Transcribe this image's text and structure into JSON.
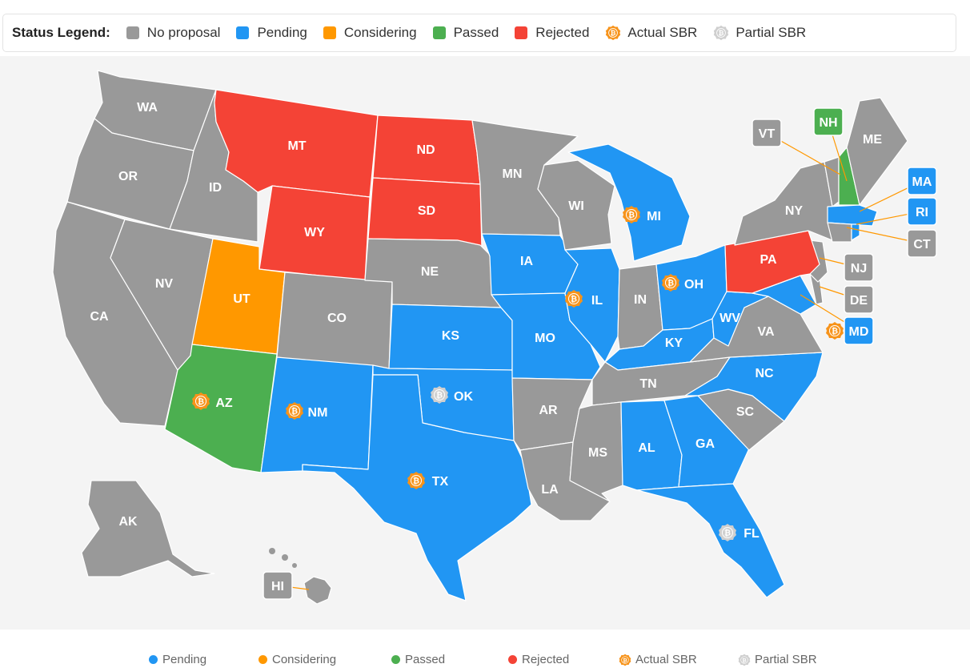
{
  "legend": {
    "title": "Status Legend:",
    "items": [
      {
        "label": "No proposal",
        "color": "#999999",
        "kind": "swatch"
      },
      {
        "label": "Pending",
        "color": "#2196f3",
        "kind": "swatch"
      },
      {
        "label": "Considering",
        "color": "#ff9800",
        "kind": "swatch"
      },
      {
        "label": "Passed",
        "color": "#4caf50",
        "kind": "swatch"
      },
      {
        "label": "Rejected",
        "color": "#f44336",
        "kind": "swatch"
      },
      {
        "label": "Actual SBR",
        "color": "#f7931a",
        "kind": "coin"
      },
      {
        "label": "Partial SBR",
        "color": "#cccccc",
        "kind": "coin"
      }
    ]
  },
  "status_colors": {
    "none": "#999999",
    "pending": "#2196f3",
    "considering": "#ff9800",
    "passed": "#4caf50",
    "rejected": "#f44336"
  },
  "states": [
    {
      "abbr": "WA",
      "status": "none",
      "sbr": null
    },
    {
      "abbr": "OR",
      "status": "none",
      "sbr": null
    },
    {
      "abbr": "CA",
      "status": "none",
      "sbr": null
    },
    {
      "abbr": "ID",
      "status": "none",
      "sbr": null
    },
    {
      "abbr": "NV",
      "status": "none",
      "sbr": null
    },
    {
      "abbr": "MT",
      "status": "rejected",
      "sbr": null
    },
    {
      "abbr": "WY",
      "status": "rejected",
      "sbr": null
    },
    {
      "abbr": "UT",
      "status": "considering",
      "sbr": null
    },
    {
      "abbr": "AZ",
      "status": "passed",
      "sbr": "actual"
    },
    {
      "abbr": "CO",
      "status": "none",
      "sbr": null
    },
    {
      "abbr": "NM",
      "status": "pending",
      "sbr": "actual"
    },
    {
      "abbr": "ND",
      "status": "rejected",
      "sbr": null
    },
    {
      "abbr": "SD",
      "status": "rejected",
      "sbr": null
    },
    {
      "abbr": "NE",
      "status": "none",
      "sbr": null
    },
    {
      "abbr": "KS",
      "status": "pending",
      "sbr": null
    },
    {
      "abbr": "OK",
      "status": "pending",
      "sbr": "partial"
    },
    {
      "abbr": "TX",
      "status": "pending",
      "sbr": "actual"
    },
    {
      "abbr": "MN",
      "status": "none",
      "sbr": null
    },
    {
      "abbr": "IA",
      "status": "pending",
      "sbr": null
    },
    {
      "abbr": "MO",
      "status": "pending",
      "sbr": null
    },
    {
      "abbr": "AR",
      "status": "none",
      "sbr": null
    },
    {
      "abbr": "LA",
      "status": "none",
      "sbr": null
    },
    {
      "abbr": "WI",
      "status": "none",
      "sbr": null
    },
    {
      "abbr": "IL",
      "status": "pending",
      "sbr": "actual"
    },
    {
      "abbr": "MI",
      "status": "pending",
      "sbr": "actual"
    },
    {
      "abbr": "IN",
      "status": "none",
      "sbr": null
    },
    {
      "abbr": "OH",
      "status": "pending",
      "sbr": "actual"
    },
    {
      "abbr": "KY",
      "status": "pending",
      "sbr": null
    },
    {
      "abbr": "TN",
      "status": "none",
      "sbr": null
    },
    {
      "abbr": "MS",
      "status": "none",
      "sbr": null
    },
    {
      "abbr": "AL",
      "status": "pending",
      "sbr": null
    },
    {
      "abbr": "GA",
      "status": "pending",
      "sbr": null
    },
    {
      "abbr": "FL",
      "status": "pending",
      "sbr": "partial"
    },
    {
      "abbr": "SC",
      "status": "none",
      "sbr": null
    },
    {
      "abbr": "NC",
      "status": "pending",
      "sbr": null
    },
    {
      "abbr": "VA",
      "status": "none",
      "sbr": null
    },
    {
      "abbr": "WV",
      "status": "pending",
      "sbr": null
    },
    {
      "abbr": "PA",
      "status": "rejected",
      "sbr": null
    },
    {
      "abbr": "NY",
      "status": "none",
      "sbr": null
    },
    {
      "abbr": "ME",
      "status": "none",
      "sbr": null
    },
    {
      "abbr": "AK",
      "status": "none",
      "sbr": null
    },
    {
      "abbr": "VT",
      "status": "none",
      "sbr": null
    },
    {
      "abbr": "NH",
      "status": "passed",
      "sbr": null
    },
    {
      "abbr": "MA",
      "status": "pending",
      "sbr": null
    },
    {
      "abbr": "RI",
      "status": "pending",
      "sbr": null
    },
    {
      "abbr": "CT",
      "status": "none",
      "sbr": null
    },
    {
      "abbr": "NJ",
      "status": "none",
      "sbr": null
    },
    {
      "abbr": "DE",
      "status": "none",
      "sbr": null
    },
    {
      "abbr": "MD",
      "status": "pending",
      "sbr": "actual"
    },
    {
      "abbr": "HI",
      "status": "none",
      "sbr": null
    }
  ],
  "bottom_legend": [
    {
      "label": "Pending",
      "color": "#2196f3",
      "kind": "dot"
    },
    {
      "label": "Considering",
      "color": "#ff9800",
      "kind": "dot"
    },
    {
      "label": "Passed",
      "color": "#4caf50",
      "kind": "dot"
    },
    {
      "label": "Rejected",
      "color": "#f44336",
      "kind": "dot"
    },
    {
      "label": "Actual SBR",
      "color": "#f7931a",
      "kind": "coin"
    },
    {
      "label": "Partial SBR",
      "color": "#cccccc",
      "kind": "coin"
    }
  ]
}
